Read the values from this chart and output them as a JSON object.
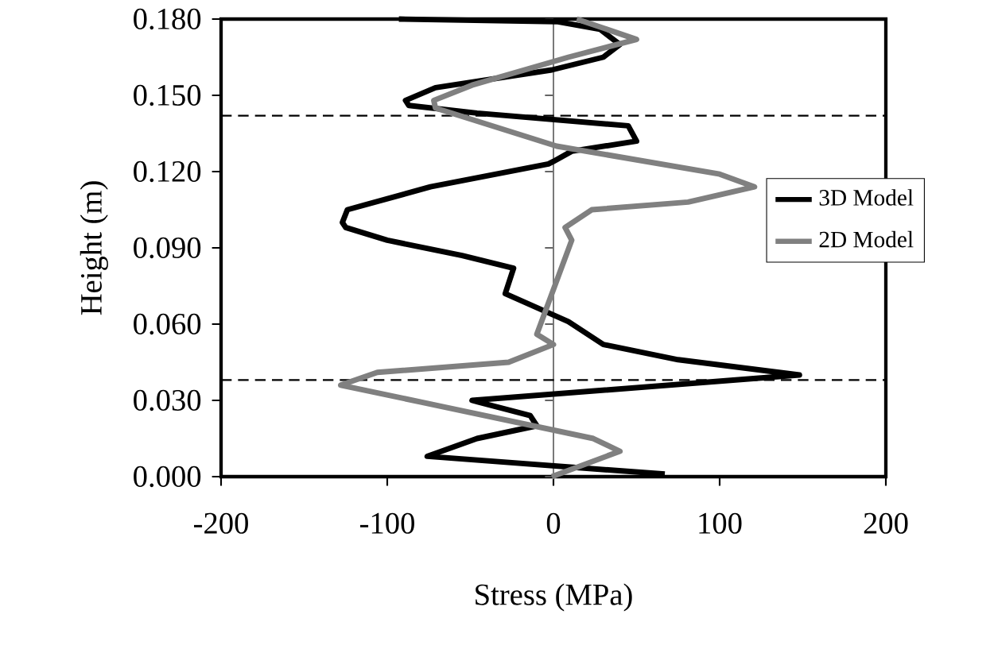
{
  "chart_data": {
    "type": "line",
    "xlabel": "Stress (MPa)",
    "ylabel": "Height (m)",
    "xlim": [
      -200,
      200
    ],
    "xticks": [
      -200,
      -100,
      0,
      100,
      200
    ],
    "ylim": [
      0,
      0.18
    ],
    "yticks": [
      {
        "value": 0,
        "label": "0.000"
      },
      {
        "value": 0.03,
        "label": "0.030"
      },
      {
        "value": 0.06,
        "label": "0.060"
      },
      {
        "value": 0.09,
        "label": "0.090"
      },
      {
        "value": 0.12,
        "label": "0.120"
      },
      {
        "value": 0.15,
        "label": "0.150"
      },
      {
        "value": 0.18,
        "label": "0.180"
      }
    ],
    "legend": "right",
    "grid": false,
    "marker": "none",
    "ref_lines": [
      {
        "axis": "x",
        "value": 0,
        "line_style": "solid",
        "color": "#707070"
      },
      {
        "axis": "y",
        "value": 0.142,
        "line_style": "dashed",
        "color": "#000000"
      },
      {
        "axis": "y",
        "value": 0.038,
        "line_style": "dashed",
        "color": "#000000"
      }
    ],
    "series": [
      {
        "name": "3D Model",
        "color": "#000000",
        "x": [
          67,
          -76,
          -46,
          -10,
          -14,
          -49,
          148,
          75,
          30,
          9,
          -29,
          -24,
          -55,
          -100,
          -125,
          -127,
          -124,
          -74,
          -3,
          0,
          11,
          50,
          45,
          -46,
          -87,
          -89,
          -71,
          -1,
          30,
          40,
          28,
          2,
          -93
        ],
        "values": [
          0.001,
          0.008,
          0.015,
          0.02,
          0.024,
          0.03,
          0.04,
          0.046,
          0.052,
          0.061,
          0.072,
          0.082,
          0.087,
          0.093,
          0.098,
          0.1,
          0.105,
          0.114,
          0.123,
          0.124,
          0.128,
          0.132,
          0.138,
          0.143,
          0.146,
          0.148,
          0.153,
          0.16,
          0.165,
          0.17,
          0.176,
          0.179,
          0.18
        ]
      },
      {
        "name": "2D Model",
        "color": "#808080",
        "x": [
          -1,
          40,
          24,
          -128,
          -106,
          -27,
          0,
          -10,
          11,
          7,
          23,
          81,
          121,
          100,
          2,
          -71,
          -72,
          -49,
          9,
          50,
          14
        ],
        "values": [
          0.0,
          0.01,
          0.015,
          0.036,
          0.041,
          0.045,
          0.052,
          0.056,
          0.093,
          0.098,
          0.105,
          0.108,
          0.114,
          0.119,
          0.13,
          0.145,
          0.148,
          0.154,
          0.165,
          0.172,
          0.18
        ]
      }
    ]
  }
}
